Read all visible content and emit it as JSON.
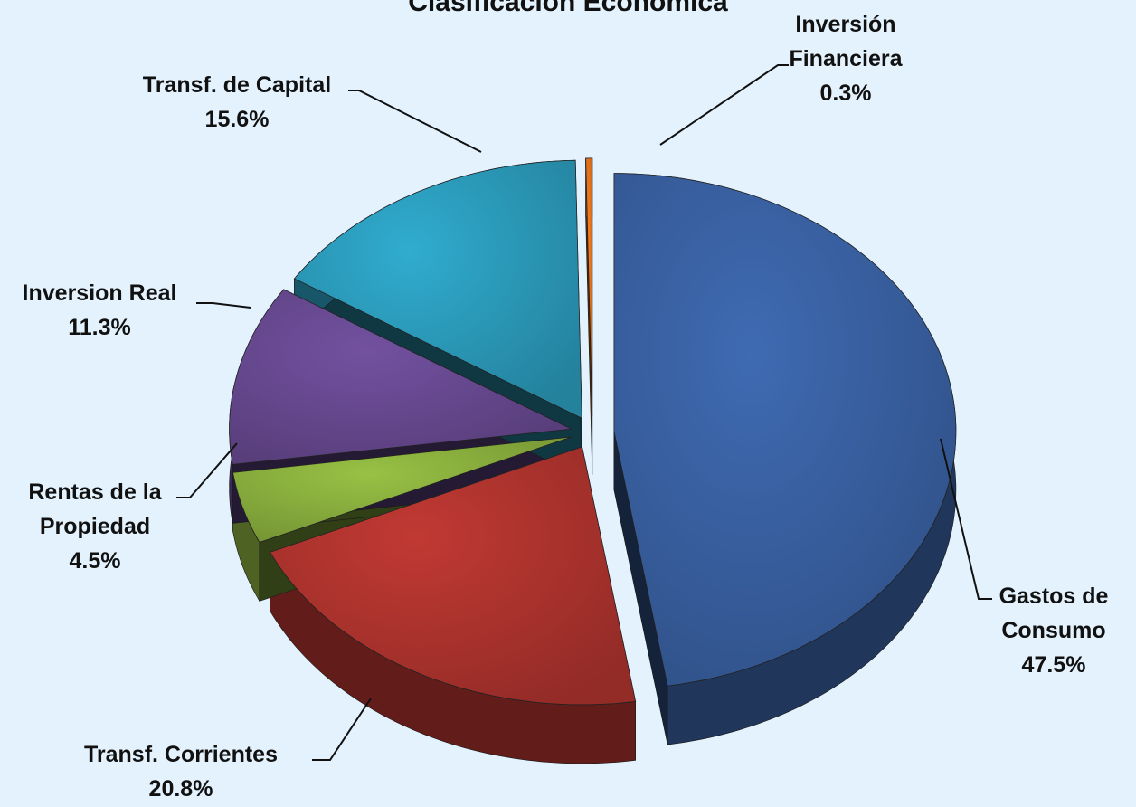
{
  "chart_data": {
    "type": "pie",
    "title": "Clasificación Económica",
    "categories": [
      "Gastos de Consumo",
      "Transf. Corrientes",
      "Rentas de la Propiedad",
      "Inversion Real",
      "Transf. de Capital",
      "Inversión Financiera"
    ],
    "values": [
      47.5,
      20.8,
      4.5,
      11.3,
      15.6,
      0.3
    ],
    "value_labels": [
      "47.5%",
      "20.8%",
      "4.5%",
      "11.3%",
      "15.6%",
      "0.3%"
    ],
    "colors": [
      "#3a63a6",
      "#b3352f",
      "#8db33f",
      "#6a4b94",
      "#2c9fc0",
      "#e8761e"
    ]
  }
}
